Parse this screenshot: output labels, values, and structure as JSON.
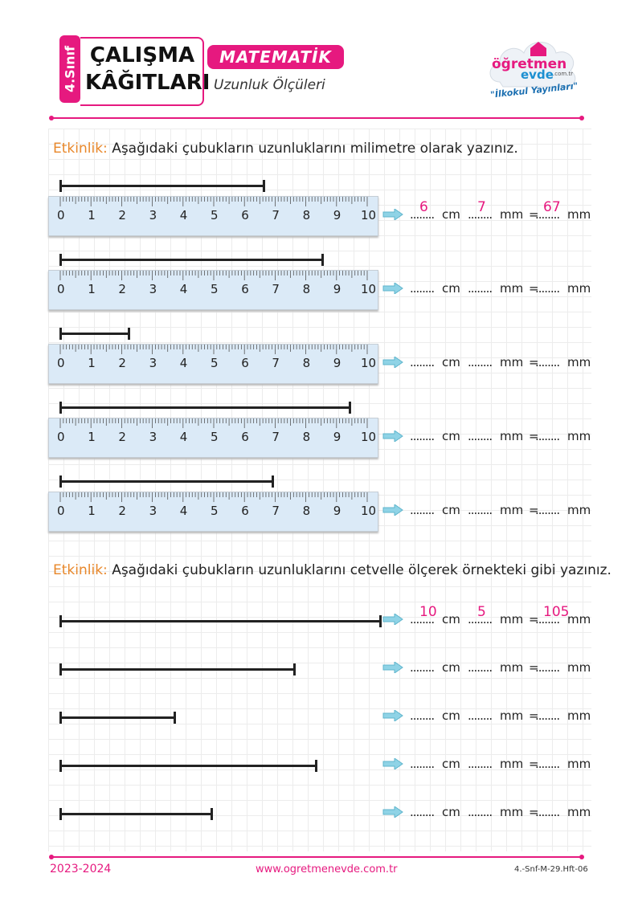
{
  "header": {
    "grade": "4.Sınıf",
    "title_line1": "ÇALIŞMA",
    "title_line2": "KÂĞITLARI",
    "subject": "MATEMATİK",
    "topic": "Uzunluk Ölçüleri",
    "logo_word1": "öğretmen",
    "logo_word2": "evde",
    "logo_domain": ".com.tr",
    "logo_tagline": "\"İlkokul Yayınları\""
  },
  "activity1": {
    "label": "Etkinlik:",
    "text": "Aşağıdaki çubukların uzunluklarını milimetre olarak yazınız."
  },
  "activity2": {
    "label": "Etkinlik:",
    "text": "Aşağıdaki çubukların uzunluklarını cetvelle ölçerek örnekteki gibi yazınız."
  },
  "ruler_numbers": [
    "0",
    "1",
    "2",
    "3",
    "4",
    "5",
    "6",
    "7",
    "8",
    "9",
    "10"
  ],
  "answer_template": {
    "dots": "........",
    "unit_cm": "cm",
    "unit_mm": "mm",
    "equals": "="
  },
  "rows1": [
    {
      "length_mm": 67,
      "cm": "6",
      "mm": "7",
      "total": "67"
    },
    {
      "length_mm": 86,
      "cm": "",
      "mm": "",
      "total": ""
    },
    {
      "length_mm": 23,
      "cm": "",
      "mm": "",
      "total": ""
    },
    {
      "length_mm": 95,
      "cm": "",
      "mm": "",
      "total": ""
    },
    {
      "length_mm": 70,
      "cm": "",
      "mm": "",
      "total": ""
    }
  ],
  "rows2": [
    {
      "length_mm": 105,
      "cm": "10",
      "mm": "5",
      "total": "105"
    },
    {
      "length_mm": 77,
      "cm": "",
      "mm": "",
      "total": ""
    },
    {
      "length_mm": 38,
      "cm": "",
      "mm": "",
      "total": ""
    },
    {
      "length_mm": 84,
      "cm": "",
      "mm": "",
      "total": ""
    },
    {
      "length_mm": 50,
      "cm": "",
      "mm": "",
      "total": ""
    }
  ],
  "footer": {
    "year": "2023-2024",
    "website": "www.ogretmenevde.com.tr",
    "code": "4.-Snf-M-29.Hft-06"
  },
  "colors": {
    "accent": "#e6197f",
    "label": "#e8872a",
    "ruler": "#dbeaf7"
  }
}
